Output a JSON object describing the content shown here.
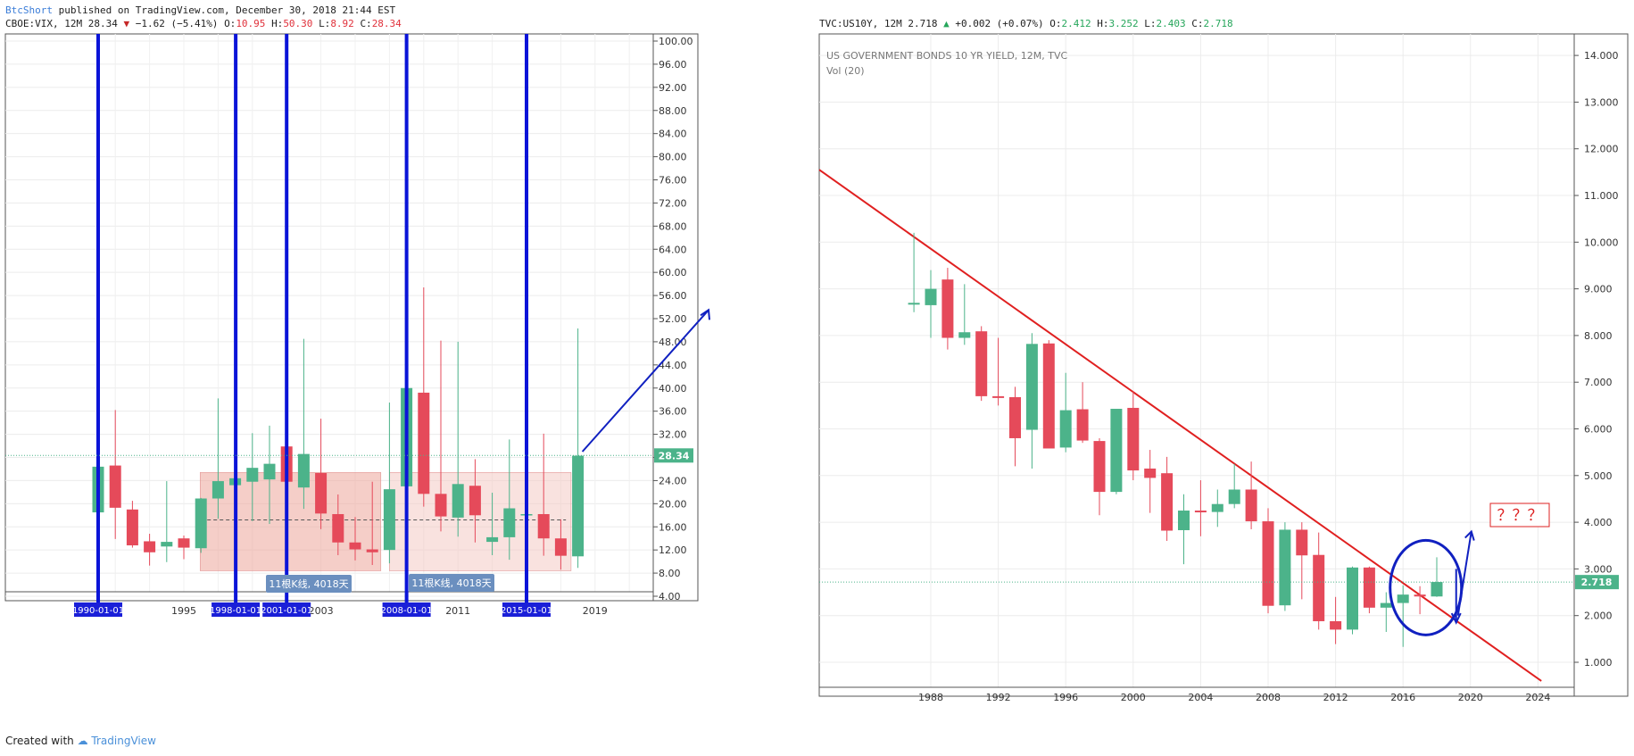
{
  "header": {
    "author": "BtcShort",
    "published": "published on TradingView.com, December 30, 2018 21:44 EST"
  },
  "left_legend": {
    "symbol": "CBOE:VIX, 12M 28.34",
    "arrow_color": "#c62828",
    "change": "−1.62 (−5.41%)",
    "o_label": "O:",
    "o": "10.95",
    "h_label": "H:",
    "h": "50.30",
    "l_label": "L:",
    "l": "8.92",
    "c_label": "C:",
    "c": "28.34"
  },
  "right_legend": {
    "symbol": "TVC:US10Y, 12M 2.718",
    "arrow_color": "#26a65b",
    "change": "+0.002 (+0.07%)",
    "o_label": "O:",
    "o": "2.412",
    "h_label": "H:",
    "h": "3.252",
    "l_label": "L:",
    "l": "2.403",
    "c_label": "C:",
    "c": "2.718"
  },
  "footer": {
    "created_with": "Created with",
    "brand": "TradingView"
  },
  "colors": {
    "up": "#4cb38a",
    "down": "#e54a5a",
    "marker": "#0a14d8",
    "trend": "#e02020",
    "price_tag": "#4cb38a"
  },
  "chart_data": [
    {
      "type": "candlestick",
      "title": "CBOE:VIX, 12M",
      "ylim": [
        4,
        100
      ],
      "y_ticks": [
        "100.00",
        "96.00",
        "92.00",
        "88.00",
        "84.00",
        "80.00",
        "76.00",
        "72.00",
        "68.00",
        "64.00",
        "60.00",
        "56.00",
        "52.00",
        "48.00",
        "44.00",
        "40.00",
        "36.00",
        "32.00",
        "28.00",
        "24.00",
        "20.00",
        "16.00",
        "12.00",
        "8.00",
        "4.00"
      ],
      "x_ticks": [
        "1995",
        "2003",
        "2011",
        "2019"
      ],
      "last_price": "28.34",
      "candles": [
        {
          "year": 1990,
          "o": 18.5,
          "h": 36.5,
          "l": 14.7,
          "c": 26.4
        },
        {
          "year": 1991,
          "o": 26.6,
          "h": 36.2,
          "l": 13.9,
          "c": 19.3
        },
        {
          "year": 1992,
          "o": 19.0,
          "h": 20.5,
          "l": 12.4,
          "c": 12.8
        },
        {
          "year": 1993,
          "o": 13.5,
          "h": 14.8,
          "l": 9.3,
          "c": 11.6
        },
        {
          "year": 1994,
          "o": 12.6,
          "h": 23.9,
          "l": 9.9,
          "c": 13.4
        },
        {
          "year": 1995,
          "o": 14.0,
          "h": 14.5,
          "l": 10.4,
          "c": 12.4
        },
        {
          "year": 1996,
          "o": 12.3,
          "h": 21.0,
          "l": 11.5,
          "c": 20.9
        },
        {
          "year": 1997,
          "o": 20.9,
          "h": 38.2,
          "l": 17.4,
          "c": 23.9
        },
        {
          "year": 1998,
          "o": 23.2,
          "h": 49.5,
          "l": 16.5,
          "c": 24.4
        },
        {
          "year": 1999,
          "o": 23.8,
          "h": 32.2,
          "l": 17.0,
          "c": 26.2
        },
        {
          "year": 2000,
          "o": 24.2,
          "h": 33.5,
          "l": 16.5,
          "c": 26.9
        },
        {
          "year": 2001,
          "o": 29.9,
          "h": 43.7,
          "l": 18.7,
          "c": 23.8
        },
        {
          "year": 2002,
          "o": 22.8,
          "h": 48.5,
          "l": 19.1,
          "c": 28.6
        },
        {
          "year": 2003,
          "o": 25.3,
          "h": 34.7,
          "l": 15.6,
          "c": 18.3
        },
        {
          "year": 2004,
          "o": 18.2,
          "h": 21.6,
          "l": 11.1,
          "c": 13.3
        },
        {
          "year": 2005,
          "o": 13.3,
          "h": 17.7,
          "l": 10.2,
          "c": 12.1
        },
        {
          "year": 2006,
          "o": 12.1,
          "h": 23.8,
          "l": 9.4,
          "c": 11.6
        },
        {
          "year": 2007,
          "o": 12.0,
          "h": 37.5,
          "l": 9.7,
          "c": 22.5
        },
        {
          "year": 2008,
          "o": 23.0,
          "h": 89.5,
          "l": 16.3,
          "c": 40.0
        },
        {
          "year": 2009,
          "o": 39.2,
          "h": 57.4,
          "l": 19.5,
          "c": 21.7
        },
        {
          "year": 2010,
          "o": 21.7,
          "h": 48.2,
          "l": 15.2,
          "c": 17.8
        },
        {
          "year": 2011,
          "o": 17.6,
          "h": 48.0,
          "l": 14.3,
          "c": 23.4
        },
        {
          "year": 2012,
          "o": 23.1,
          "h": 27.7,
          "l": 13.3,
          "c": 18.0
        },
        {
          "year": 2013,
          "o": 13.4,
          "h": 21.9,
          "l": 11.1,
          "c": 14.2
        },
        {
          "year": 2014,
          "o": 14.2,
          "h": 31.1,
          "l": 10.3,
          "c": 19.2
        },
        {
          "year": 2015,
          "o": 18.1,
          "h": 53.3,
          "l": 10.9,
          "c": 18.2
        },
        {
          "year": 2016,
          "o": 18.2,
          "h": 32.1,
          "l": 11.0,
          "c": 14.0
        },
        {
          "year": 2017,
          "o": 14.0,
          "h": 17.3,
          "l": 8.6,
          "c": 11.0
        },
        {
          "year": 2018,
          "o": 10.9,
          "h": 50.3,
          "l": 8.9,
          "c": 28.3
        }
      ],
      "markers": [
        {
          "year": 1990,
          "label": "1990-01-01"
        },
        {
          "year": 1998,
          "label": "1998-01-01"
        },
        {
          "year": 2001,
          "label": "2001-01-01"
        },
        {
          "year": 2008,
          "label": "2008-01-01"
        },
        {
          "year": 2015,
          "label": "2015-01-01"
        }
      ],
      "annotations": [
        {
          "text": "11根K线, 4018天",
          "from_year": 1996,
          "to_year": 2007
        },
        {
          "text": "11根K线, 4018天",
          "from_year": 2007,
          "to_year": 2018
        }
      ],
      "range_box": {
        "y_low": 8.4,
        "y_high": 25.4
      }
    },
    {
      "type": "candlestick",
      "title": "US GOVERNMENT BONDS 10 YR YIELD, 12M, TVC",
      "subtitle": "Vol (20)",
      "ylim": [
        0,
        14.4
      ],
      "y_ticks": [
        "14.000",
        "13.000",
        "12.000",
        "11.000",
        "10.000",
        "9.000",
        "8.000",
        "7.000",
        "6.000",
        "5.000",
        "4.000",
        "3.000",
        "2.000",
        "1.000"
      ],
      "x_ticks": [
        "1988",
        "1992",
        "1996",
        "2000",
        "2004",
        "2008",
        "2012",
        "2016",
        "2020",
        "2024"
      ],
      "last_price": "2.718",
      "annotation_text": "？？？",
      "candles": [
        {
          "year": 1987,
          "o": 8.7,
          "h": 10.2,
          "l": 8.5,
          "c": 8.7
        },
        {
          "year": 1988,
          "o": 8.65,
          "h": 9.4,
          "l": 7.95,
          "c": 9.0
        },
        {
          "year": 1989,
          "o": 9.2,
          "h": 9.45,
          "l": 7.7,
          "c": 7.95
        },
        {
          "year": 1990,
          "o": 7.95,
          "h": 9.1,
          "l": 7.8,
          "c": 8.07
        },
        {
          "year": 1991,
          "o": 8.09,
          "h": 8.2,
          "l": 6.6,
          "c": 6.7
        },
        {
          "year": 1992,
          "o": 6.7,
          "h": 7.95,
          "l": 6.5,
          "c": 6.68
        },
        {
          "year": 1993,
          "o": 6.68,
          "h": 6.9,
          "l": 5.2,
          "c": 5.8
        },
        {
          "year": 1994,
          "o": 5.98,
          "h": 8.05,
          "l": 5.15,
          "c": 7.82
        },
        {
          "year": 1995,
          "o": 7.83,
          "h": 7.9,
          "l": 5.6,
          "c": 5.58
        },
        {
          "year": 1996,
          "o": 5.6,
          "h": 7.2,
          "l": 5.5,
          "c": 6.4
        },
        {
          "year": 1997,
          "o": 6.42,
          "h": 7.0,
          "l": 5.7,
          "c": 5.75
        },
        {
          "year": 1998,
          "o": 5.74,
          "h": 5.8,
          "l": 4.15,
          "c": 4.65
        },
        {
          "year": 1999,
          "o": 4.65,
          "h": 6.4,
          "l": 4.6,
          "c": 6.43
        },
        {
          "year": 2000,
          "o": 6.45,
          "h": 6.8,
          "l": 4.9,
          "c": 5.11
        },
        {
          "year": 2001,
          "o": 5.15,
          "h": 5.55,
          "l": 4.2,
          "c": 4.95
        },
        {
          "year": 2002,
          "o": 5.05,
          "h": 5.4,
          "l": 3.6,
          "c": 3.82
        },
        {
          "year": 2003,
          "o": 3.83,
          "h": 4.6,
          "l": 3.1,
          "c": 4.25
        },
        {
          "year": 2004,
          "o": 4.25,
          "h": 4.9,
          "l": 3.7,
          "c": 4.22
        },
        {
          "year": 2005,
          "o": 4.22,
          "h": 4.7,
          "l": 3.9,
          "c": 4.39
        },
        {
          "year": 2006,
          "o": 4.39,
          "h": 5.25,
          "l": 4.3,
          "c": 4.7
        },
        {
          "year": 2007,
          "o": 4.7,
          "h": 5.3,
          "l": 3.85,
          "c": 4.02
        },
        {
          "year": 2008,
          "o": 4.02,
          "h": 4.3,
          "l": 2.05,
          "c": 2.21
        },
        {
          "year": 2009,
          "o": 2.22,
          "h": 4.0,
          "l": 2.1,
          "c": 3.84
        },
        {
          "year": 2010,
          "o": 3.84,
          "h": 4.0,
          "l": 2.35,
          "c": 3.29
        },
        {
          "year": 2011,
          "o": 3.3,
          "h": 3.78,
          "l": 1.7,
          "c": 1.88
        },
        {
          "year": 2012,
          "o": 1.88,
          "h": 2.4,
          "l": 1.39,
          "c": 1.7
        },
        {
          "year": 2013,
          "o": 1.7,
          "h": 3.05,
          "l": 1.6,
          "c": 3.03
        },
        {
          "year": 2014,
          "o": 3.03,
          "h": 3.05,
          "l": 2.05,
          "c": 2.17
        },
        {
          "year": 2015,
          "o": 2.17,
          "h": 2.5,
          "l": 1.65,
          "c": 2.27
        },
        {
          "year": 2016,
          "o": 2.27,
          "h": 2.65,
          "l": 1.33,
          "c": 2.45
        },
        {
          "year": 2017,
          "o": 2.45,
          "h": 2.63,
          "l": 2.03,
          "c": 2.41
        },
        {
          "year": 2018,
          "o": 2.41,
          "h": 3.25,
          "l": 2.4,
          "c": 2.72
        }
      ]
    }
  ]
}
